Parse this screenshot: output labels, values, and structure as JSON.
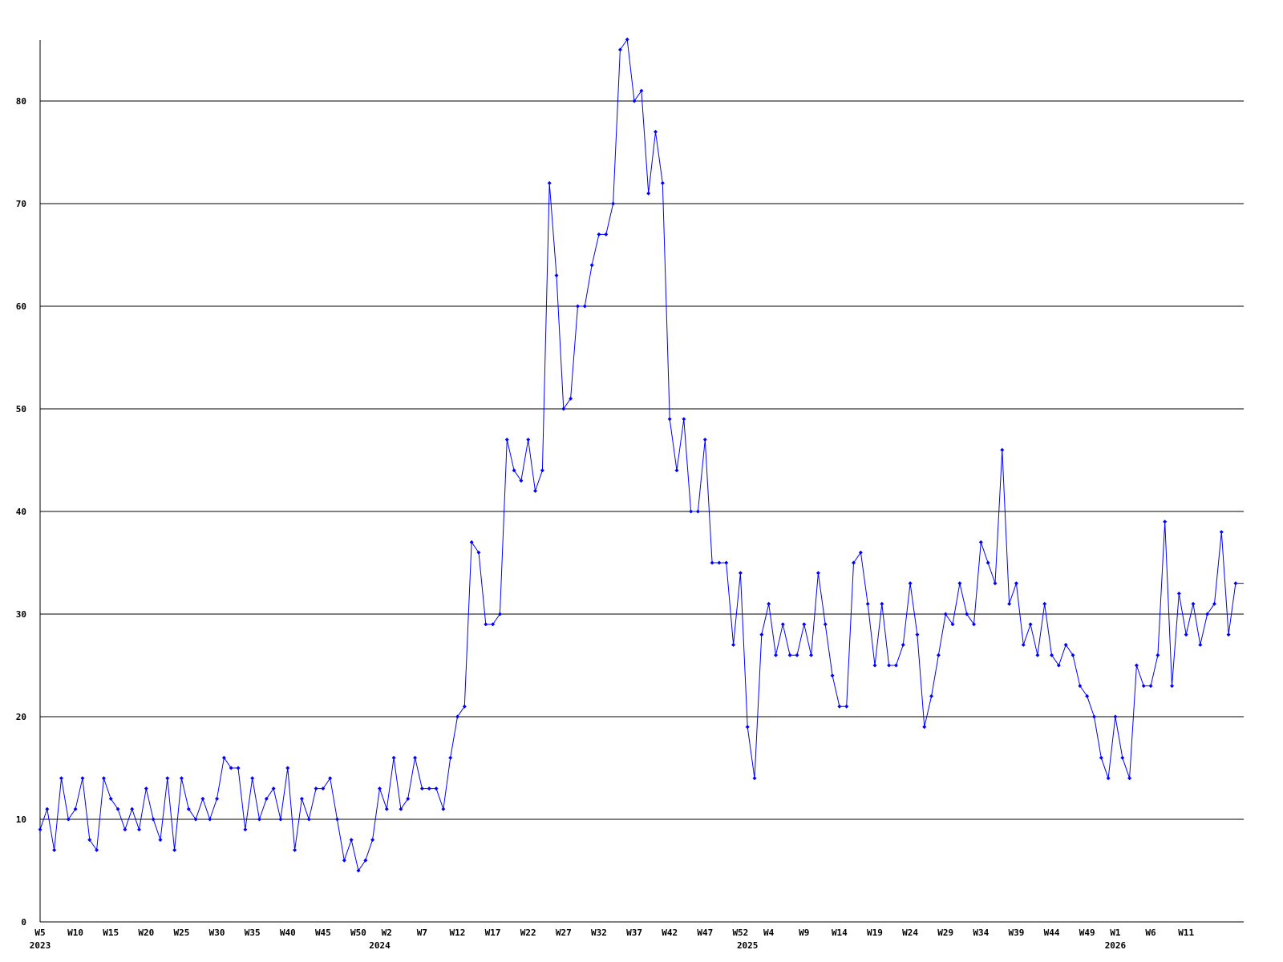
{
  "chart_data": {
    "type": "line",
    "title": "",
    "xlabel": "",
    "ylabel": "",
    "ylim": [
      0,
      86
    ],
    "grid": true,
    "legend": "none",
    "line_color": "#0000ff",
    "grid_color": "#000000",
    "y_ticks": [
      "0",
      "10",
      "20",
      "30",
      "40",
      "50",
      "60",
      "70",
      "80"
    ],
    "data_by_year": [
      {
        "year": "2023",
        "first_week": 5,
        "values": [
          9,
          11,
          7,
          14,
          10,
          11,
          14,
          8,
          7,
          14,
          12,
          11,
          9,
          11,
          9,
          13,
          10,
          8,
          14,
          7,
          14,
          11,
          10,
          12,
          10,
          12,
          16,
          15,
          15,
          9,
          14,
          10,
          12,
          13,
          10,
          15,
          7,
          12,
          10,
          13,
          13,
          14,
          10,
          6,
          8,
          5,
          6,
          8
        ]
      },
      {
        "year": "2024",
        "first_week": 1,
        "values": [
          13,
          11,
          16,
          11,
          12,
          16,
          13,
          13,
          13,
          11,
          16,
          20,
          21,
          37,
          36,
          29,
          29,
          30,
          47,
          44,
          43,
          47,
          42,
          44,
          72,
          63,
          50,
          51,
          60,
          60,
          64,
          67,
          67,
          70,
          85,
          86,
          80,
          81,
          71,
          77,
          72,
          49,
          44,
          49,
          40,
          40,
          47,
          35,
          35,
          35,
          27,
          34
        ]
      },
      {
        "year": "2025",
        "first_week": 1,
        "values": [
          19,
          14,
          28,
          31,
          26,
          29,
          26,
          26,
          29,
          26,
          34,
          29,
          24,
          21,
          21,
          35,
          36,
          31,
          25,
          31,
          25,
          25,
          27,
          33,
          28,
          19,
          22,
          26,
          30,
          29,
          33,
          30,
          29,
          37,
          35,
          33,
          46,
          31,
          33,
          27,
          29,
          26,
          31,
          26,
          25,
          27,
          26,
          23,
          22,
          20,
          16,
          14
        ]
      },
      {
        "year": "2026",
        "first_week": 1,
        "values": [
          20,
          16,
          14,
          25,
          23,
          23,
          26,
          39,
          23,
          32,
          28,
          31,
          27,
          30,
          31,
          38,
          28,
          33
        ]
      }
    ],
    "x_ticks": [
      {
        "year": "2023",
        "weeks": [
          "W5",
          "W10",
          "W15",
          "W20",
          "W25",
          "W30",
          "W35",
          "W40",
          "W45",
          "W50"
        ]
      },
      {
        "year": "2024",
        "weeks": [
          "W2",
          "W7",
          "W12",
          "W17",
          "W22",
          "W27",
          "W32",
          "W37",
          "W42",
          "W47",
          "W52"
        ]
      },
      {
        "year": "2025",
        "weeks": [
          "W4",
          "W9",
          "W14",
          "W19",
          "W24",
          "W29",
          "W34",
          "W39",
          "W44",
          "W49"
        ]
      },
      {
        "year": "2026",
        "weeks": [
          "W1",
          "W6",
          "W11"
        ]
      }
    ]
  }
}
